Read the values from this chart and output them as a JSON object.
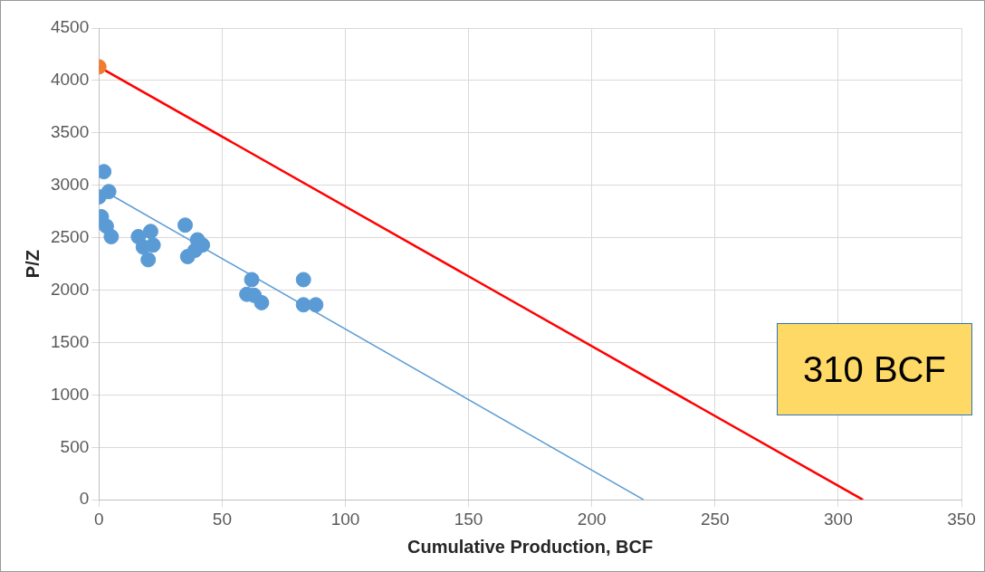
{
  "chart_data": {
    "type": "scatter",
    "xlabel": "Cumulative Production, BCF",
    "ylabel": "P/Z",
    "xlim": [
      0,
      350
    ],
    "xticks": [
      0,
      50,
      100,
      150,
      200,
      250,
      300,
      350
    ],
    "ylim": [
      0,
      4500
    ],
    "yticks": [
      0,
      500,
      1000,
      1500,
      2000,
      2500,
      3000,
      3500,
      4000,
      4500
    ],
    "grid": true,
    "legend": false,
    "marker": "circle",
    "series": [
      {
        "type": "line",
        "marker": "none",
        "color": "#ff0000",
        "x": [
          0,
          310
        ],
        "values": [
          4130,
          0
        ]
      },
      {
        "type": "line",
        "marker": "none",
        "color": "#5b9bd5",
        "x": [
          4,
          221
        ],
        "values": [
          2920,
          0
        ]
      },
      {
        "color": "#5b9bd5",
        "x": [
          2,
          0,
          4,
          1,
          3,
          5,
          16,
          21,
          22,
          20,
          18,
          35,
          40,
          36,
          39,
          42,
          62,
          60,
          66,
          63,
          83,
          83,
          88
        ],
        "values": [
          3130,
          2890,
          2940,
          2700,
          2610,
          2510,
          2510,
          2560,
          2430,
          2290,
          2410,
          2620,
          2480,
          2320,
          2380,
          2430,
          2100,
          1960,
          1880,
          1950,
          2100,
          1860,
          1860
        ]
      },
      {
        "color": "#ed7d31",
        "x": [
          0
        ],
        "values": [
          4130
        ]
      }
    ],
    "annotations": [
      "310 BCF"
    ]
  }
}
